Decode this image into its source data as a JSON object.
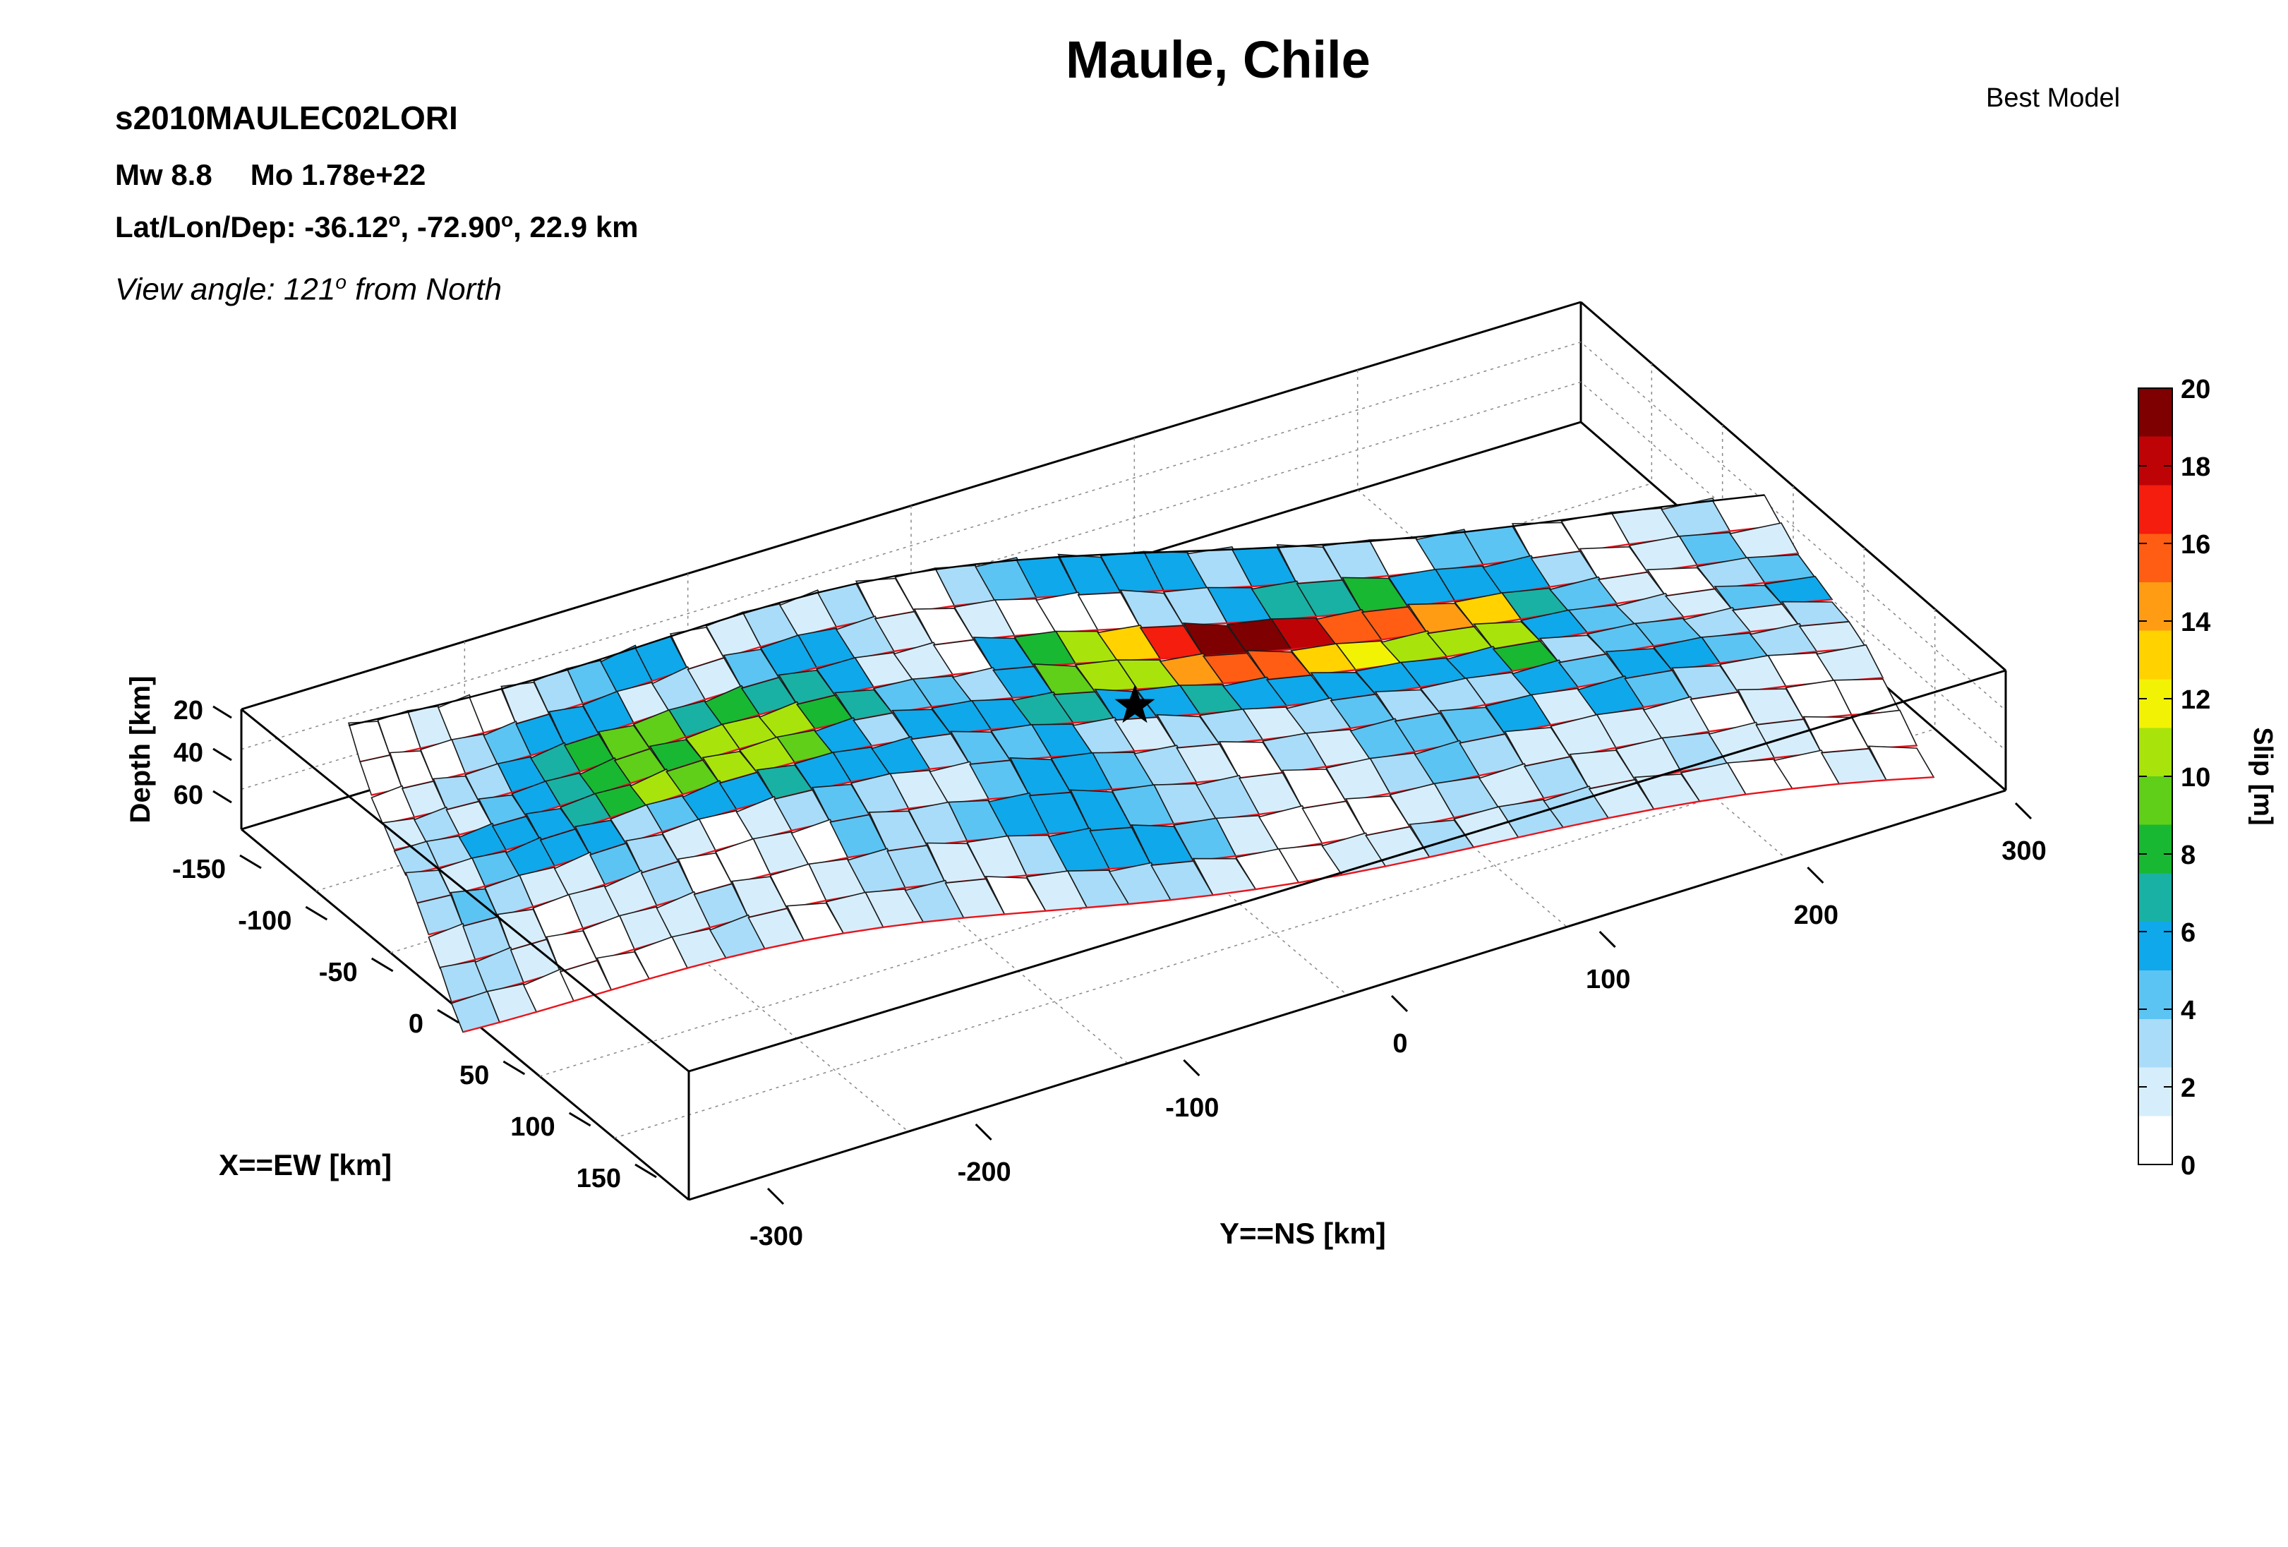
{
  "header": {
    "title": "Maule, Chile",
    "event_id": "s2010MAULEC02LORI",
    "model_label": "Best Model",
    "mw_label": "Mw 8.8",
    "mo_label": "Mo 1.78e+22",
    "latlondep_prefix": "Lat/Lon/Dep: -36.12",
    "latlondep_mid": ", -72.90",
    "latlondep_suffix": ", 22.9 km",
    "view_prefix": "View angle: 121",
    "view_suffix": " from North",
    "degree_mark": "o"
  },
  "chart_data": {
    "type": "heatmap",
    "title": "Maule, Chile",
    "xlabel": "X==EW [km]",
    "ylabel": "Y==NS [km]",
    "zlabel": "Depth [km]",
    "colorbar_label": "Slip [m]",
    "colorbar_range": [
      0,
      20
    ],
    "colorbar_ticks": [
      "0",
      "2",
      "4",
      "6",
      "8",
      "10",
      "12",
      "14",
      "16",
      "18",
      "20"
    ],
    "x_ticks": [
      "-150",
      "-100",
      "-50",
      "0",
      "50",
      "100",
      "150"
    ],
    "y_ticks": [
      "-300",
      "-200",
      "-100",
      "0",
      "100",
      "200",
      "300"
    ],
    "z_ticks": [
      "20",
      "40",
      "60"
    ],
    "colormap": [
      "#ffffff",
      "#d6eefc",
      "#a9dcf8",
      "#5cc4f3",
      "#0fa8ea",
      "#19b1a3",
      "#18b832",
      "#5fcf19",
      "#a8e40b",
      "#f2f205",
      "#ffd200",
      "#ff9c14",
      "#ff5d13",
      "#f41d0e",
      "#be0307",
      "#7e0000"
    ],
    "hypocenter_marker": "star",
    "grid_layout": "rows from shallow (top) to deep (bottom); columns from south to north along strike",
    "slip_rows": [
      [
        1,
        1,
        2,
        1,
        1,
        2,
        3,
        4,
        5,
        5,
        1,
        2,
        3,
        2,
        3,
        0,
        1,
        3,
        4,
        5,
        5,
        5,
        5,
        3,
        5,
        3,
        3,
        1,
        4,
        4,
        1,
        1,
        2,
        3,
        0
      ],
      [
        0,
        1,
        1,
        3,
        4,
        5,
        5,
        5,
        2,
        3,
        2,
        4,
        6,
        6,
        3,
        2,
        1,
        2,
        1,
        0,
        1,
        3,
        3,
        6,
        7,
        7,
        8,
        6,
        6,
        5,
        3,
        1,
        2,
        4,
        2
      ],
      [
        1,
        2,
        3,
        3,
        6,
        7,
        8,
        9,
        9,
        7,
        8,
        7,
        7,
        6,
        2,
        2,
        1,
        5,
        8,
        11,
        13,
        17,
        19,
        19,
        18,
        16,
        15,
        14,
        13,
        7,
        4,
        2,
        1,
        3,
        4
      ],
      [
        2,
        3,
        2,
        4,
        5,
        7,
        8,
        9,
        8,
        10,
        11,
        10,
        8,
        7,
        4,
        4,
        3,
        6,
        9,
        11,
        11,
        14,
        16,
        15,
        13,
        12,
        10,
        11,
        11,
        6,
        4,
        3,
        2,
        4,
        5
      ],
      [
        3,
        3,
        5,
        6,
        6,
        7,
        8,
        10,
        9,
        11,
        11,
        9,
        6,
        3,
        5,
        6,
        6,
        7,
        7,
        5,
        5,
        7,
        6,
        6,
        5,
        5,
        5,
        6,
        8,
        3,
        4,
        4,
        3,
        2,
        3
      ],
      [
        3,
        2,
        4,
        6,
        6,
        5,
        3,
        4,
        5,
        6,
        7,
        5,
        5,
        5,
        3,
        4,
        4,
        5,
        3,
        2,
        3,
        3,
        2,
        3,
        4,
        3,
        3,
        3,
        6,
        4,
        6,
        5,
        4,
        3,
        2
      ],
      [
        3,
        4,
        3,
        2,
        2,
        4,
        3,
        2,
        1,
        2,
        3,
        4,
        3,
        2,
        2,
        4,
        5,
        5,
        4,
        3,
        2,
        0,
        3,
        2,
        4,
        4,
        4,
        6,
        2,
        5,
        4,
        3,
        2,
        1,
        2
      ],
      [
        2,
        3,
        2,
        0,
        2,
        2,
        3,
        0,
        1,
        2,
        1,
        4,
        3,
        3,
        4,
        5,
        5,
        5,
        4,
        3,
        3,
        2,
        1,
        2,
        3,
        4,
        3,
        2,
        2,
        2,
        2,
        1,
        2,
        1,
        1
      ],
      [
        3,
        3,
        2,
        1,
        0,
        2,
        2,
        3,
        2,
        1,
        2,
        3,
        3,
        2,
        2,
        3,
        5,
        5,
        5,
        4,
        2,
        1,
        1,
        0,
        2,
        3,
        2,
        3,
        2,
        2,
        3,
        2,
        2,
        1,
        1
      ],
      [
        3,
        2,
        1,
        1,
        0,
        1,
        2,
        3,
        2,
        1,
        2,
        2,
        3,
        2,
        1,
        2,
        3,
        3,
        3,
        2,
        1,
        1,
        2,
        2,
        3,
        2,
        3,
        3,
        2,
        2,
        2,
        1,
        1,
        2,
        1
      ]
    ]
  }
}
